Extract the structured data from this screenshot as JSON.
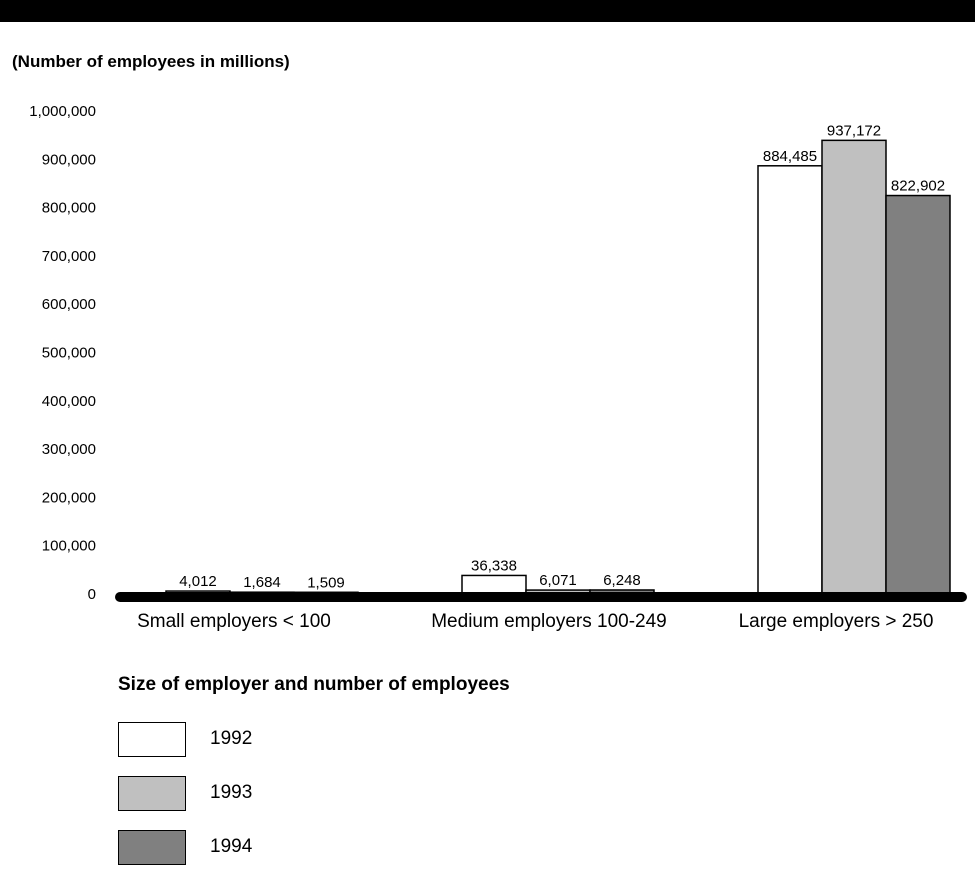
{
  "chart_data": {
    "type": "bar",
    "unit_label": "(Number of employees in millions)",
    "xlabel": "Size of employer and number of employees",
    "ylabel": "",
    "ylim": [
      0,
      1000000
    ],
    "yticks": [
      0,
      100000,
      200000,
      300000,
      400000,
      500000,
      600000,
      700000,
      800000,
      900000,
      1000000
    ],
    "ytick_labels": [
      "0",
      "100,000",
      "200,000",
      "300,000",
      "400,000",
      "500,000",
      "600,000",
      "700,000",
      "800,000",
      "900,000",
      "1,000,000"
    ],
    "categories": [
      "Small employers < 100",
      "Medium employers 100-249",
      "Large employers > 250"
    ],
    "series": [
      {
        "name": "1992",
        "color": "#ffffff",
        "values": [
          4012,
          36338,
          884485
        ],
        "labels": [
          "4,012",
          "36,338",
          "884,485"
        ]
      },
      {
        "name": "1993",
        "color": "#c0c0c0",
        "values": [
          1684,
          6071,
          937172
        ],
        "labels": [
          "1,684",
          "6,071",
          "937,172"
        ]
      },
      {
        "name": "1994",
        "color": "#808080",
        "values": [
          1509,
          6248,
          822902
        ],
        "labels": [
          "1,509",
          "6,248",
          "822,902"
        ]
      }
    ],
    "grid": false,
    "legend_position": "bottom-left"
  }
}
